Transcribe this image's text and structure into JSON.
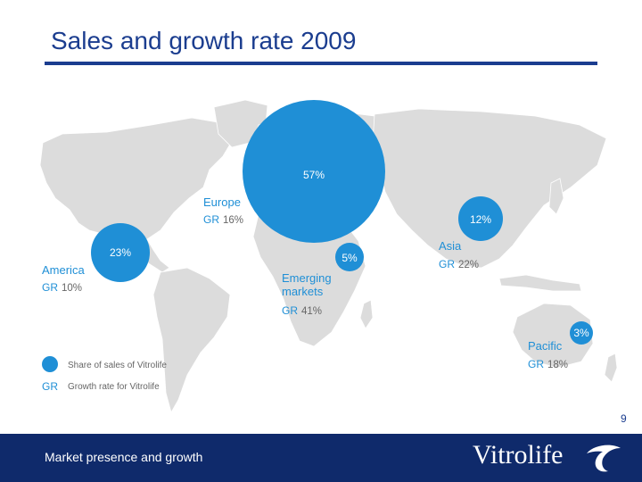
{
  "header": {
    "title": "Sales and growth rate 2009"
  },
  "colors": {
    "title": "#1b3d8f",
    "bubble": "#1f8fd6",
    "land": "#dcdcdc",
    "footer": "#0f2a6b"
  },
  "regions": {
    "europe": {
      "name": "Europe",
      "gr_label": "GR",
      "gr_value": "16%",
      "share": "57%"
    },
    "america": {
      "name": "America",
      "gr_label": "GR",
      "gr_value": "10%",
      "share": "23%"
    },
    "emerging": {
      "name_line1": "Emerging",
      "name_line2": "markets",
      "gr_label": "GR",
      "gr_value": "41%",
      "share": "5%"
    },
    "asia": {
      "name": "Asia",
      "gr_label": "GR",
      "gr_value": "22%",
      "share": "12%"
    },
    "pacific": {
      "name": "Pacific",
      "gr_label": "GR",
      "gr_value": "18%",
      "share": "3%"
    }
  },
  "legend": {
    "bubble_text": "Share of sales of Vitrolife",
    "gr_symbol": "GR",
    "gr_text": "Growth rate for Vitrolife"
  },
  "page_number": "9",
  "footer": {
    "text": "Market presence and growth",
    "logo_text": "Vitrolife"
  }
}
